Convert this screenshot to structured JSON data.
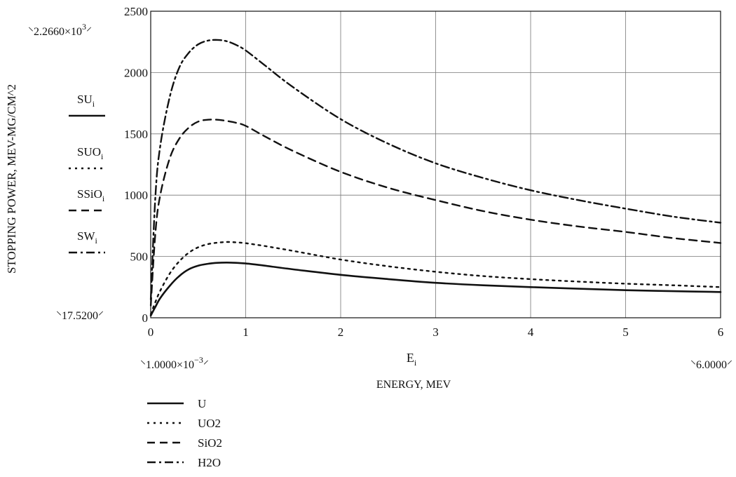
{
  "chart_data": {
    "type": "line",
    "xlabel_var": "E",
    "xlabel_sub": "i",
    "xlabel": "ENERGY, MEV",
    "ylabel": "STOPPING POWER, MEV-MG/CM^2",
    "xlim": [
      0,
      6
    ],
    "ylim": [
      0,
      2500
    ],
    "x_ticks": [
      0,
      1,
      2,
      3,
      4,
      5,
      6
    ],
    "y_ticks": [
      0,
      500,
      1000,
      1500,
      2000,
      2500
    ],
    "grid": true,
    "range_markers": {
      "x_min": "1.0000×10",
      "x_min_exp": "−3",
      "x_max": "6.0000",
      "y_min": "17.5200",
      "y_max": "2.2660×10",
      "y_max_exp": "3"
    },
    "series": [
      {
        "name": "U",
        "axis_label": "SU",
        "axis_sub": "i",
        "style": "solid",
        "x": [
          0.001,
          0.05,
          0.1,
          0.2,
          0.3,
          0.4,
          0.5,
          0.6,
          0.7,
          0.8,
          0.9,
          1.0,
          1.2,
          1.5,
          2.0,
          2.5,
          3.0,
          3.5,
          4.0,
          4.5,
          5.0,
          5.5,
          6.0
        ],
        "values": [
          17.52,
          90,
          160,
          260,
          340,
          395,
          425,
          440,
          448,
          450,
          448,
          443,
          425,
          395,
          350,
          315,
          285,
          265,
          250,
          237,
          225,
          217,
          210
        ]
      },
      {
        "name": "UO2",
        "axis_label": "SUO",
        "axis_sub": "i",
        "style": "dotted",
        "x": [
          0.001,
          0.05,
          0.1,
          0.2,
          0.3,
          0.4,
          0.5,
          0.6,
          0.7,
          0.8,
          0.9,
          1.0,
          1.2,
          1.5,
          2.0,
          2.5,
          3.0,
          3.5,
          4.0,
          4.5,
          5.0,
          5.5,
          6.0
        ],
        "values": [
          30,
          130,
          220,
          360,
          460,
          530,
          575,
          600,
          612,
          618,
          615,
          608,
          585,
          545,
          475,
          420,
          375,
          340,
          315,
          295,
          278,
          265,
          250
        ]
      },
      {
        "name": "SiO2",
        "axis_label": "SSiO",
        "axis_sub": "i",
        "style": "dashed",
        "x": [
          0.001,
          0.05,
          0.1,
          0.2,
          0.3,
          0.4,
          0.5,
          0.6,
          0.7,
          0.8,
          0.9,
          1.0,
          1.2,
          1.5,
          2.0,
          2.5,
          3.0,
          3.5,
          4.0,
          4.5,
          5.0,
          5.5,
          6.0
        ],
        "values": [
          100,
          700,
          1000,
          1300,
          1460,
          1550,
          1600,
          1615,
          1615,
          1605,
          1590,
          1565,
          1480,
          1360,
          1190,
          1060,
          960,
          870,
          800,
          745,
          700,
          650,
          610
        ]
      },
      {
        "name": "H2O",
        "axis_label": "SW",
        "axis_sub": "i",
        "style": "dashdot",
        "x": [
          0.001,
          0.05,
          0.1,
          0.2,
          0.3,
          0.4,
          0.5,
          0.6,
          0.7,
          0.8,
          0.9,
          1.0,
          1.2,
          1.5,
          2.0,
          2.5,
          3.0,
          3.5,
          4.0,
          4.5,
          5.0,
          5.5,
          6.0
        ],
        "values": [
          150,
          1000,
          1400,
          1800,
          2040,
          2160,
          2230,
          2260,
          2266,
          2255,
          2225,
          2180,
          2060,
          1880,
          1620,
          1420,
          1260,
          1140,
          1040,
          960,
          890,
          825,
          775
        ]
      }
    ]
  }
}
